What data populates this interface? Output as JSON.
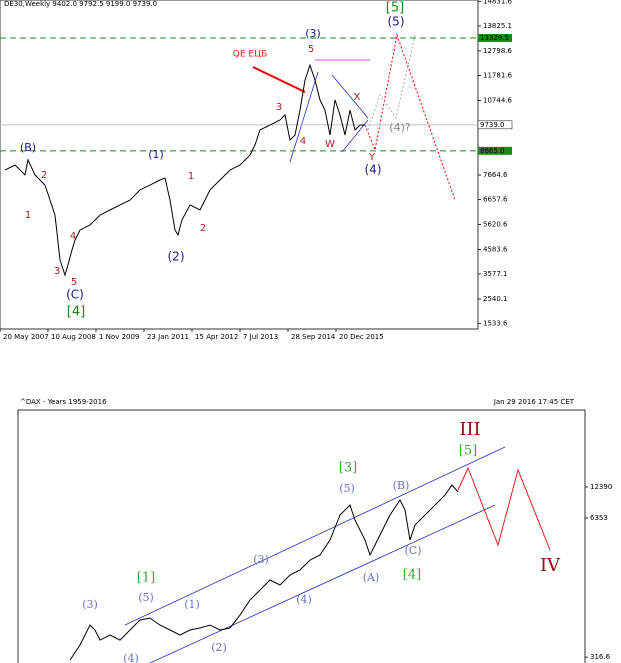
{
  "chart_data": [
    {
      "type": "line",
      "title": "DE30,Weekly 9402.0 9792.5 9199.0 9739.0",
      "color": "#000000",
      "x": [
        5,
        15,
        25,
        28,
        35,
        45,
        55,
        60,
        65,
        68,
        72,
        75,
        80,
        90,
        100,
        110,
        120,
        130,
        140,
        150,
        160,
        165,
        170,
        175,
        178,
        182,
        190,
        200,
        205,
        210,
        220,
        230,
        240,
        250,
        255,
        260,
        270,
        280,
        285,
        290,
        295,
        300,
        305,
        310,
        315,
        320,
        325,
        330,
        335,
        340,
        345,
        350,
        355,
        360,
        365
      ],
      "values": [
        7870,
        8080,
        7670,
        8290,
        7670,
        7250,
        6010,
        4150,
        3530,
        3950,
        4570,
        4980,
        5390,
        5600,
        6010,
        6220,
        6430,
        6630,
        7050,
        7250,
        7460,
        7540,
        6630,
        5390,
        5190,
        5810,
        6430,
        6220,
        6630,
        7050,
        7460,
        7870,
        8080,
        8490,
        8910,
        9530,
        9730,
        9940,
        10150,
        9110,
        9320,
        10350,
        11590,
        12210,
        11590,
        10770,
        10350,
        9320,
        10770,
        10150,
        9320,
        10350,
        9530,
        9730,
        9739
      ],
      "xlim": [
        0,
        478
      ],
      "xticks": [
        {
          "value": 0,
          "label": "20 May 2007"
        },
        {
          "value": 48,
          "label": "10 Aug 2008"
        },
        {
          "value": 96,
          "label": "1 Nov 2009"
        },
        {
          "value": 144,
          "label": "23 Jan 2011"
        },
        {
          "value": 192,
          "label": "15 Apr 2012"
        },
        {
          "value": 240,
          "label": "7 Jul 2013"
        },
        {
          "value": 288,
          "label": "28 Sep 2014"
        },
        {
          "value": 336,
          "label": "20 Dec 2015"
        }
      ],
      "ylim": [
        1300,
        14900
      ],
      "yticks": [
        14831.6,
        13825.1,
        12798.6,
        11781.6,
        10744.6,
        7664.6,
        6657.6,
        5620.6,
        4583.6,
        3577.1,
        2540.1,
        1533.6
      ],
      "levels": [
        13329.5,
        {
          "value": 9739.0,
          "label": "9739.0"
        },
        {
          "value": 8665.0,
          "label": "8665.0"
        }
      ],
      "level_colors": [
        "#1a8a1a",
        "#c0c0c0",
        "#1a8a1a"
      ],
      "annotations": [
        "[5]",
        "(5)",
        "(3)",
        "5",
        "QE ЕЦБ",
        "3",
        "4",
        "X",
        "W",
        "(4)?",
        "Y",
        "(4)",
        "(B)",
        "(1)",
        "2",
        "1",
        "1",
        "2",
        "4",
        "3",
        "5",
        "(2)",
        "(C)",
        "[4]"
      ]
    },
    {
      "type": "line",
      "title": "^DAX - Years 1959-2016",
      "subtitle": "Jan 29 2016 17:45 CET",
      "color": "#000000",
      "log_scale": true,
      "x": [
        70,
        80,
        90,
        95,
        100,
        110,
        120,
        130,
        140,
        150,
        160,
        170,
        180,
        190,
        200,
        210,
        220,
        230,
        240,
        250,
        260,
        270,
        280,
        290,
        300,
        310,
        320,
        330,
        340,
        350,
        355,
        365,
        370,
        375,
        380,
        390,
        400,
        405,
        410,
        415,
        425,
        435,
        445,
        452,
        458
      ],
      "values": [
        297,
        411,
        632,
        568,
        457,
        509,
        457,
        568,
        705,
        735,
        632,
        568,
        509,
        568,
        593,
        632,
        568,
        593,
        784,
        1084,
        1345,
        1669,
        1498,
        1858,
        2070,
        2567,
        2860,
        3954,
        6773,
        8400,
        6080,
        3954,
        2860,
        3550,
        4404,
        6773,
        9360,
        7550,
        3954,
        5460,
        6773,
        8400,
        10420,
        12950,
        11120
      ],
      "xlim": [
        18,
        585
      ],
      "ylim": [
        279,
        65200
      ],
      "yticks": [
        12390,
        6353,
        316.6
      ],
      "annotations": [
        "III",
        "[5]",
        "[3]",
        "(5)",
        "(B)",
        "(3)",
        "(1)",
        "[1]",
        "(5)",
        "(3)",
        "(4)",
        "(2)",
        "(A)",
        "(C)",
        "[4]",
        "IV",
        "(4)"
      ]
    }
  ]
}
